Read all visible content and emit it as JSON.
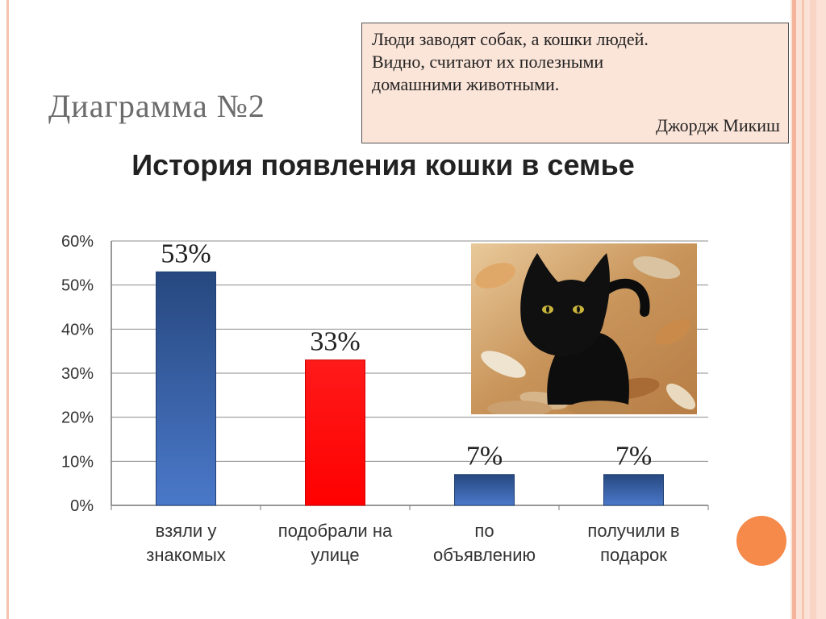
{
  "slide": {
    "title": "Диаграмма №2",
    "quote": "Люди заводят собак, а кошки людей.\nВидно, считают их полезными\nдомашними животными.",
    "quote_author": "Джордж Микиш"
  },
  "photo": {
    "subject": "black-cat-in-autumn-leaves"
  },
  "colors": {
    "bar_blue": "#3a65b5",
    "bar_red": "#ff0000",
    "frame": "#f4c2ae",
    "accent": "#f58a4b",
    "quote_bg": "#fbe4d8"
  },
  "chart_data": {
    "type": "bar",
    "title": "История появления кошки в семье",
    "categories": [
      "взяли у знакомых",
      "подобрали на улице",
      "по объявлению",
      "получили в подарок"
    ],
    "category_lines": [
      [
        "взяли у",
        "знакомых"
      ],
      [
        "подобрали на",
        "улице"
      ],
      [
        "по",
        "объявлению"
      ],
      [
        "получили в",
        "подарок"
      ]
    ],
    "values": [
      53,
      33,
      7,
      7
    ],
    "data_labels": [
      "53%",
      "33%",
      "7%",
      "7%"
    ],
    "bar_colors": [
      "#3a65b5",
      "#ff0000",
      "#3a65b5",
      "#3a65b5"
    ],
    "ylim": [
      0,
      60
    ],
    "yticks": [
      0,
      10,
      20,
      30,
      40,
      50,
      60
    ],
    "ytick_labels": [
      "0%",
      "10%",
      "20%",
      "30%",
      "40%",
      "50%",
      "60%"
    ],
    "grid": true,
    "legend": "none"
  }
}
